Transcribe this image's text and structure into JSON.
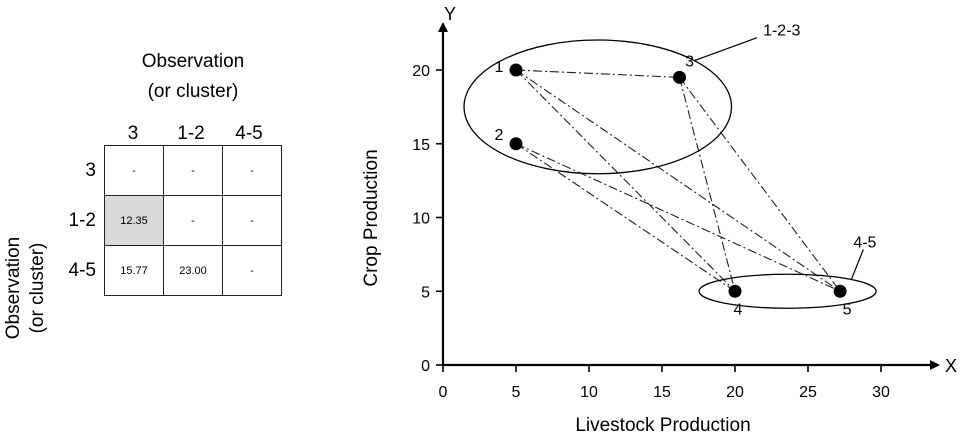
{
  "matrix": {
    "title_line1": "Observation",
    "title_line2": "(or cluster)",
    "side_line1": "Observation",
    "side_line2": "(or cluster)",
    "col_headers": [
      "3",
      "1-2",
      "4-5"
    ],
    "row_headers": [
      "3",
      "1-2",
      "4-5"
    ],
    "cells": [
      [
        "-",
        "-",
        "-"
      ],
      [
        "12.35",
        "-",
        "-"
      ],
      [
        "15.77",
        "23.00",
        "-"
      ]
    ],
    "highlight_color": "#d9d9d9"
  },
  "chart_data": {
    "type": "scatter",
    "xlabel": "Livestock Production",
    "ylabel": "Crop Production",
    "x_axis_letter": "X",
    "y_axis_letter": "Y",
    "xlim": [
      0,
      30
    ],
    "ylim": [
      0,
      20
    ],
    "xticks": [
      "0",
      "5",
      "10",
      "15",
      "20",
      "25",
      "30"
    ],
    "yticks": [
      "0",
      "5",
      "10",
      "15",
      "20"
    ],
    "points": [
      {
        "label": "1",
        "x": 5,
        "y": 20
      },
      {
        "label": "2",
        "x": 5,
        "y": 15
      },
      {
        "label": "3",
        "x": 16.2,
        "y": 19.5
      },
      {
        "label": "4",
        "x": 20,
        "y": 5
      },
      {
        "label": "5",
        "x": 27.2,
        "y": 5
      }
    ],
    "links": [
      [
        1,
        4
      ],
      [
        1,
        5
      ],
      [
        1,
        3
      ],
      [
        2,
        4
      ],
      [
        2,
        5
      ],
      [
        3,
        4
      ],
      [
        3,
        5
      ]
    ],
    "clusters": [
      {
        "label": "1-2-3",
        "members": [
          1,
          2,
          3
        ]
      },
      {
        "label": "4-5",
        "members": [
          4,
          5
        ]
      }
    ],
    "grid": false
  }
}
